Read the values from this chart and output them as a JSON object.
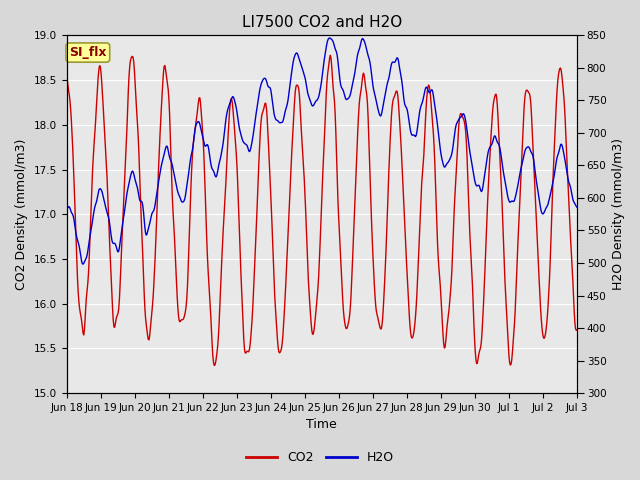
{
  "title": "LI7500 CO2 and H2O",
  "xlabel": "Time",
  "ylabel_left": "CO2 Density (mmol/m3)",
  "ylabel_right": "H2O Density (mmol/m3)",
  "co2_ylim": [
    15.0,
    19.0
  ],
  "h2o_ylim": [
    300,
    850
  ],
  "co2_color": "#cc0000",
  "h2o_color": "#0000cc",
  "line_width": 1.0,
  "fig_bg_color": "#d8d8d8",
  "plot_bg_color": "#e8e8e8",
  "annotation_text": "SI_flx",
  "annotation_bg": "#ffff99",
  "annotation_border": "#999933",
  "tick_label_fontsize": 7.5,
  "axis_label_fontsize": 9,
  "title_fontsize": 11,
  "legend_fontsize": 9,
  "x_tick_labels": [
    "Jun 18",
    "Jun 19",
    "Jun 20",
    "Jun 21",
    "Jun 22",
    "Jun 23",
    "Jun 24",
    "Jun 25",
    "Jun 26",
    "Jun 27",
    "Jun 28",
    "Jun 29",
    "Jun 30",
    "Jul 1",
    "Jul 2",
    "Jul 3"
  ],
  "co2_yticks": [
    15.0,
    15.5,
    16.0,
    16.5,
    17.0,
    17.5,
    18.0,
    18.5,
    19.0
  ],
  "h2o_yticks": [
    300,
    350,
    400,
    450,
    500,
    550,
    600,
    650,
    700,
    750,
    800,
    850
  ],
  "dpi": 100,
  "figsize": [
    6.4,
    4.8
  ]
}
